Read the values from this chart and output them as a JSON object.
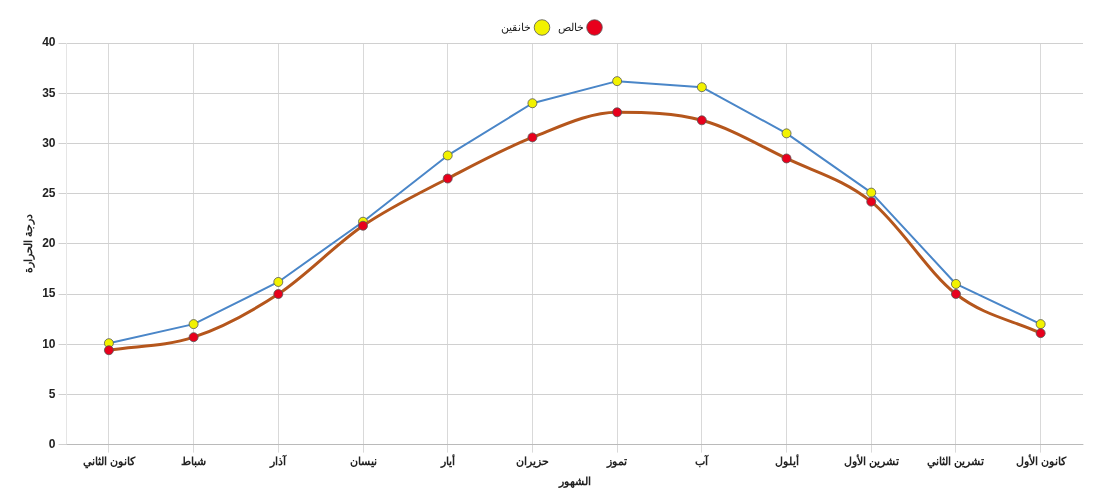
{
  "chart_data": {
    "type": "line",
    "xlabel": "الشهور",
    "ylabel": "درجة الحرارة",
    "categories": [
      "كانون الثاني",
      "شباط",
      "آذار",
      "نيسان",
      "أيار",
      "حزيران",
      "تموز",
      "آب",
      "أيلول",
      "تشرين الأول",
      "تشرين الثاني",
      "كانون الأول"
    ],
    "series": [
      {
        "name": "خالص",
        "color": "#b5561c",
        "colors": [
          "#e8001c",
          "#e8001c",
          "#e8001c",
          "#e8001c",
          "#e8001c",
          "#e8001c",
          "#e8001c",
          "#e8001c",
          "#e8001c",
          "#e8001c",
          "#e8001c",
          "#e8001c"
        ],
        "values": [
          9.4,
          10.7,
          15,
          21.8,
          26.5,
          30.6,
          33.1,
          32.3,
          28.5,
          24.2,
          15,
          11.1
        ]
      },
      {
        "name": "خانقين",
        "color": "#4a86c8",
        "colors": [
          "#f2f200",
          "#f2f200",
          "#f2f200",
          "#f2f200",
          "#f2f200",
          "#f2f200",
          "#f2f200",
          "#f2f200",
          "#f2f200",
          "#f2f200",
          "#f2f200",
          "#f2f200"
        ],
        "values": [
          10.1,
          12,
          16.2,
          22.2,
          28.8,
          34,
          36.2,
          35.6,
          31,
          25.1,
          16,
          12
        ]
      }
    ],
    "ylim": [
      0,
      40
    ],
    "yticks": [
      0,
      5,
      10,
      15,
      20,
      25,
      30,
      35,
      40
    ],
    "grid": true,
    "legend": "top",
    "marker": "circle",
    "line_style": "solid"
  }
}
